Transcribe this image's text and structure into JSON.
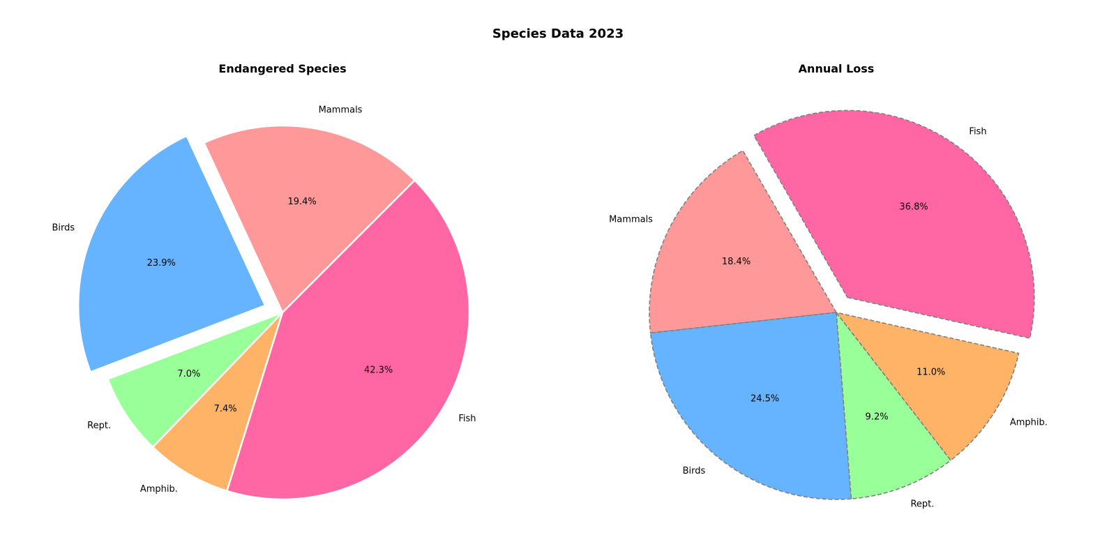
{
  "figure": {
    "title": "Species Data 2023"
  },
  "chart_data": [
    {
      "type": "pie",
      "title": "Endangered Species",
      "start_angle_deg": 45,
      "direction": "counterclockwise",
      "edge": {
        "color": "#ffffff",
        "style": "solid"
      },
      "slices": [
        {
          "label": "Mammals",
          "value": 19.4,
          "pct_label": "19.4%",
          "color": "#ff9999",
          "explode": 0
        },
        {
          "label": "Birds",
          "value": 23.9,
          "pct_label": "23.9%",
          "color": "#66b3ff",
          "explode": 0.1
        },
        {
          "label": "Rept.",
          "value": 7.0,
          "pct_label": "7.0%",
          "color": "#99ff99",
          "explode": 0
        },
        {
          "label": "Amphib.",
          "value": 7.4,
          "pct_label": "7.4%",
          "color": "#ffb366",
          "explode": 0
        },
        {
          "label": "Fish",
          "value": 42.3,
          "pct_label": "42.3%",
          "color": "#ff66a3",
          "explode": 0
        }
      ]
    },
    {
      "type": "pie",
      "title": "Annual Loss",
      "start_angle_deg": 120,
      "direction": "counterclockwise",
      "edge": {
        "color": "#808080",
        "style": "dashed"
      },
      "slices": [
        {
          "label": "Mammals",
          "value": 18.4,
          "pct_label": "18.4%",
          "color": "#ff9999",
          "explode": 0
        },
        {
          "label": "Birds",
          "value": 24.5,
          "pct_label": "24.5%",
          "color": "#66b3ff",
          "explode": 0
        },
        {
          "label": "Rept.",
          "value": 9.2,
          "pct_label": "9.2%",
          "color": "#99ff99",
          "explode": 0
        },
        {
          "label": "Amphib.",
          "value": 11.0,
          "pct_label": "11.0%",
          "color": "#ffb366",
          "explode": 0
        },
        {
          "label": "Fish",
          "value": 36.8,
          "pct_label": "36.8%",
          "color": "#ff66a3",
          "explode": 0.1
        }
      ]
    }
  ]
}
